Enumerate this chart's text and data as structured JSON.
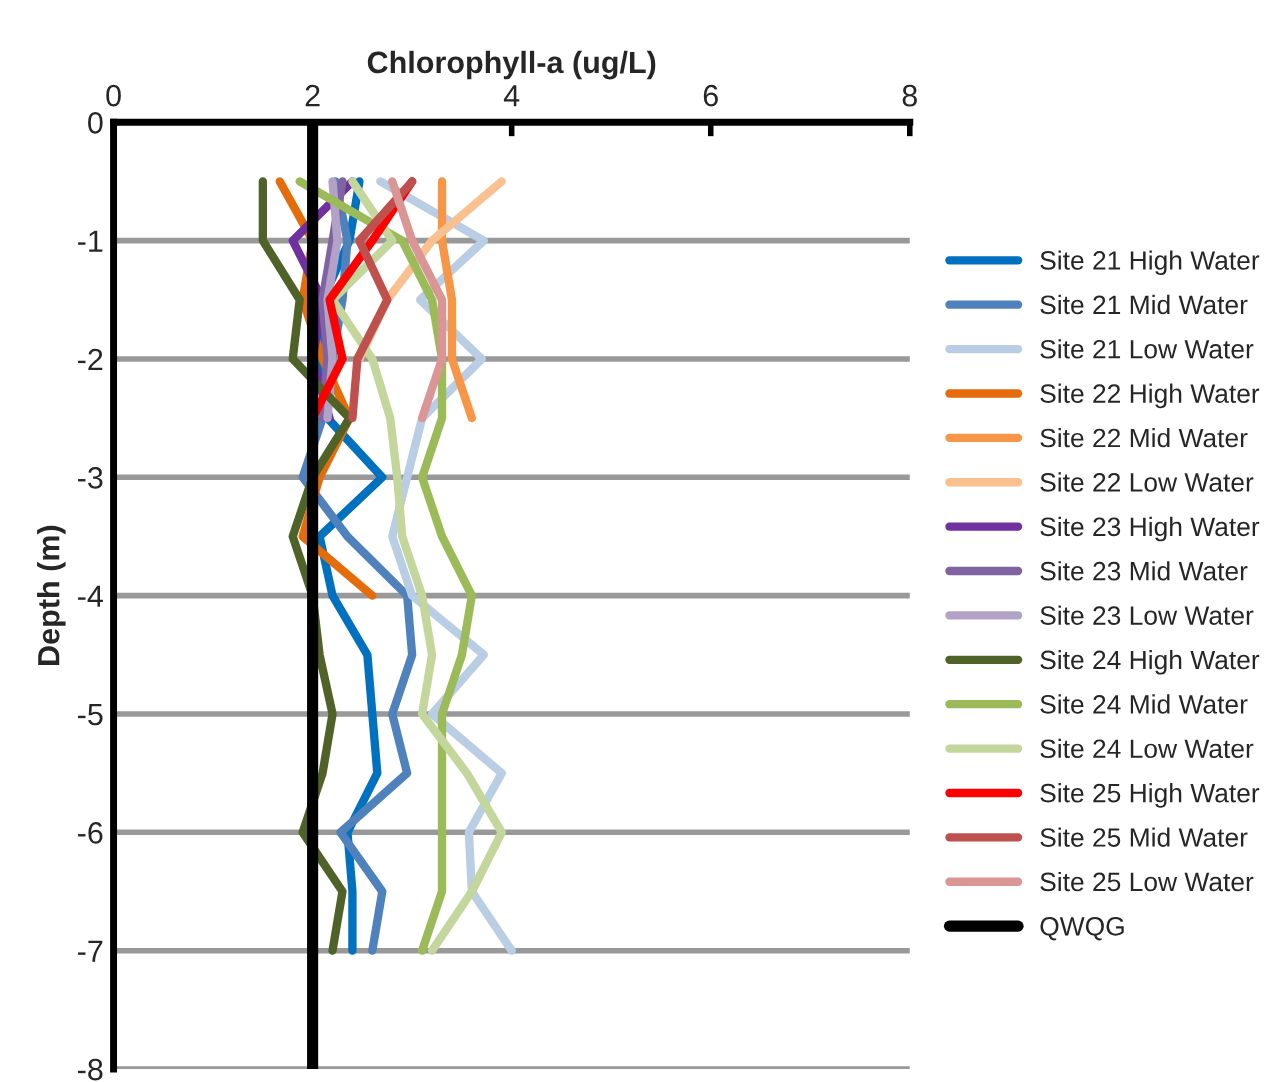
{
  "chart_data": {
    "type": "line",
    "xlabel": "Chlorophyll-a (ug/L)",
    "ylabel": "Depth (m)",
    "xlim": [
      0,
      8
    ],
    "xticks": [
      0,
      2,
      4,
      6,
      8
    ],
    "ylim": [
      -8,
      0
    ],
    "yticks": [
      0,
      -1,
      -2,
      -3,
      -4,
      -5,
      -6,
      -7,
      -8
    ],
    "grid": "y",
    "legend": "right",
    "marker": "none",
    "line_style": "solid",
    "series": [
      {
        "name": "Site 21 High Water",
        "color": "#0070c0",
        "x": [
          2.47,
          2.37,
          2.1,
          2.05,
          2.15,
          2.7,
          2.07,
          2.2,
          2.55,
          2.6,
          2.65,
          2.35,
          2.4,
          2.4
        ],
        "values": [
          -0.5,
          -1,
          -1.5,
          -2,
          -2.5,
          -3,
          -3.5,
          -4,
          -4.5,
          -5,
          -5.5,
          -6,
          -6.5,
          -7
        ]
      },
      {
        "name": "Site 21 Mid Water",
        "color": "#4f81bd",
        "x": [
          2.23,
          2.35,
          2.3,
          2.2,
          2.1,
          1.9,
          2.35,
          2.95,
          3.0,
          2.8,
          2.95,
          2.28,
          2.7,
          2.6
        ],
        "values": [
          -0.5,
          -1,
          -1.5,
          -2,
          -2.5,
          -3,
          -3.5,
          -4,
          -4.5,
          -5,
          -5.5,
          -6,
          -6.5,
          -7
        ]
      },
      {
        "name": "Site 21 Low Water",
        "color": "#b9cde5",
        "x": [
          2.68,
          3.72,
          3.08,
          3.7,
          3.1,
          2.95,
          2.8,
          3.0,
          3.72,
          3.2,
          3.9,
          3.57,
          3.6,
          4.0
        ],
        "values": [
          -0.5,
          -1,
          -1.5,
          -2,
          -2.5,
          -3,
          -3.5,
          -4,
          -4.5,
          -5,
          -5.5,
          -6,
          -6.5,
          -7
        ]
      },
      {
        "name": "Site 22 High Water",
        "color": "#e46c0a",
        "x": [
          1.67,
          2.0,
          1.9,
          2.1,
          2.37,
          2.07,
          1.9,
          2.6
        ],
        "values": [
          -0.5,
          -1,
          -1.5,
          -2,
          -2.5,
          -3,
          -3.5,
          -4
        ]
      },
      {
        "name": "Site 22 Mid Water",
        "color": "#f79646",
        "x": [
          3.3,
          3.3,
          3.4,
          3.4,
          3.6
        ],
        "values": [
          -0.5,
          -1,
          -1.5,
          -2,
          -2.5
        ]
      },
      {
        "name": "Site 22 Low Water",
        "color": "#fac090",
        "x": [
          3.9,
          3.2,
          2.75,
          2.47
        ],
        "values": [
          -0.5,
          -1,
          -1.5,
          -2
        ]
      },
      {
        "name": "Site 23 High Water",
        "color": "#7030a0",
        "x": [
          2.4,
          1.8,
          2.1,
          2.0,
          2.17
        ],
        "values": [
          -0.5,
          -1,
          -1.5,
          -2,
          -2.5
        ]
      },
      {
        "name": "Site 23 Mid Water",
        "color": "#8064a2",
        "x": [
          2.3,
          2.2,
          2.1,
          2.15,
          2.1
        ],
        "values": [
          -0.5,
          -1,
          -1.5,
          -2,
          -2.5
        ]
      },
      {
        "name": "Site 23 Low Water",
        "color": "#b3a2c7",
        "x": [
          2.2,
          2.25,
          2.15,
          2.2,
          2.15
        ],
        "values": [
          -0.5,
          -1,
          -1.5,
          -2,
          -2.5
        ]
      },
      {
        "name": "Site 24 High Water",
        "color": "#4f6228",
        "x": [
          1.5,
          1.5,
          1.87,
          1.8,
          2.37,
          2.0,
          1.8,
          2.0,
          2.07,
          2.2,
          2.1,
          1.9,
          2.3,
          2.2
        ],
        "values": [
          -0.5,
          -1,
          -1.5,
          -2,
          -2.5,
          -3,
          -3.5,
          -4,
          -4.5,
          -5,
          -5.5,
          -6,
          -6.5,
          -7
        ]
      },
      {
        "name": "Site 24 Mid Water",
        "color": "#9bbb59",
        "x": [
          1.87,
          2.9,
          3.2,
          3.3,
          3.3,
          3.1,
          3.3,
          3.6,
          3.5,
          3.3,
          3.3,
          3.3,
          3.3,
          3.1
        ],
        "values": [
          -0.5,
          -1,
          -1.5,
          -2,
          -2.5,
          -3,
          -3.5,
          -4,
          -4.5,
          -5,
          -5.5,
          -6,
          -6.5,
          -7
        ]
      },
      {
        "name": "Site 24 Low Water",
        "color": "#c3d69b",
        "x": [
          2.4,
          2.8,
          2.2,
          2.6,
          2.78,
          2.85,
          2.9,
          3.1,
          3.2,
          3.1,
          3.55,
          3.9,
          3.6,
          3.2
        ],
        "values": [
          -0.5,
          -1,
          -1.5,
          -2,
          -2.5,
          -3,
          -3.5,
          -4,
          -4.5,
          -5,
          -5.5,
          -6,
          -6.5,
          -7
        ]
      },
      {
        "name": "Site 25 High Water",
        "color": "#ff0000",
        "x": [
          3.0,
          2.6,
          2.17,
          2.3,
          2.0
        ],
        "values": [
          -0.5,
          -1,
          -1.5,
          -2,
          -2.5
        ]
      },
      {
        "name": "Site 25 Mid Water",
        "color": "#c0504d",
        "x": [
          3.0,
          2.47,
          2.75,
          2.45,
          2.4
        ],
        "values": [
          -0.5,
          -1,
          -1.5,
          -2,
          -2.5
        ]
      },
      {
        "name": "Site 25 Low Water",
        "color": "#d99694",
        "x": [
          2.8,
          3.0,
          3.3,
          3.3,
          3.1
        ],
        "values": [
          -0.5,
          -1,
          -1.5,
          -2,
          -2.5
        ]
      },
      {
        "name": "QWQG",
        "color": "#000000",
        "x": [
          2,
          2
        ],
        "values": [
          0,
          -8
        ]
      }
    ]
  }
}
